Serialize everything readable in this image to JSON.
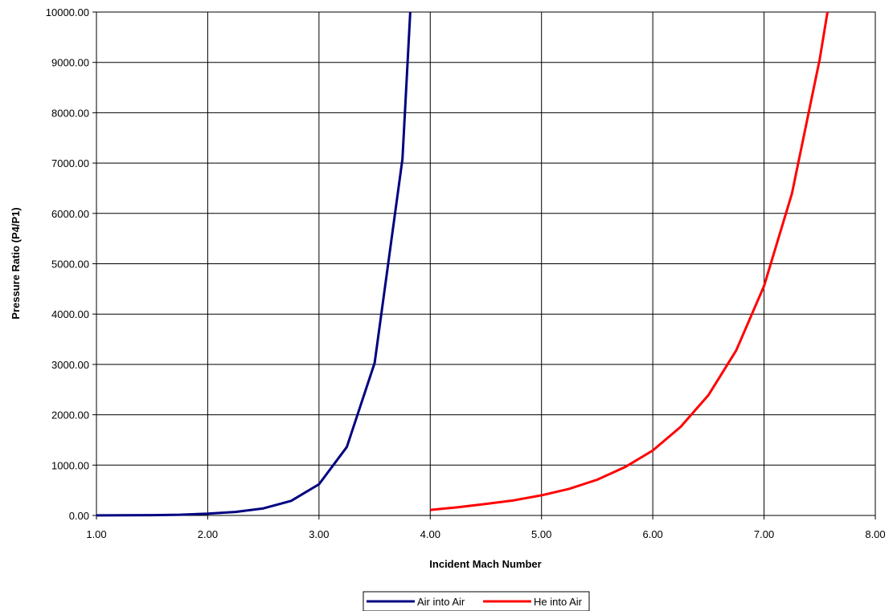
{
  "chart_data": {
    "type": "line",
    "title": "",
    "xlabel": "Incident Mach Number",
    "ylabel": "Pressure Ratio (P4/P1)",
    "xlim": [
      1,
      8
    ],
    "ylim": [
      0,
      10000
    ],
    "x_ticks": [
      "1.00",
      "2.00",
      "3.00",
      "4.00",
      "5.00",
      "6.00",
      "7.00",
      "8.00"
    ],
    "y_ticks": [
      "0.00",
      "1000.00",
      "2000.00",
      "3000.00",
      "4000.00",
      "5000.00",
      "6000.00",
      "7000.00",
      "8000.00",
      "9000.00",
      "10000.00"
    ],
    "grid": true,
    "legend_position": "bottom",
    "series": [
      {
        "name": "Air into Air",
        "color": "#000080",
        "x": [
          1.0,
          1.25,
          1.5,
          1.75,
          2.0,
          2.25,
          2.5,
          2.75,
          3.0,
          3.25,
          3.5,
          3.75,
          3.82
        ],
        "y": [
          1,
          3,
          7,
          15,
          35,
          70,
          140,
          290,
          620,
          1360,
          3030,
          7080,
          10000
        ]
      },
      {
        "name": "He into Air",
        "color": "#ff0000",
        "x": [
          4.0,
          4.25,
          4.5,
          4.75,
          5.0,
          5.25,
          5.5,
          5.75,
          6.0,
          6.25,
          6.5,
          6.75,
          7.0,
          7.25,
          7.5,
          7.57
        ],
        "y": [
          110,
          165,
          230,
          300,
          400,
          530,
          710,
          960,
          1290,
          1760,
          2390,
          3280,
          4560,
          6390,
          9060,
          10000
        ]
      }
    ]
  }
}
